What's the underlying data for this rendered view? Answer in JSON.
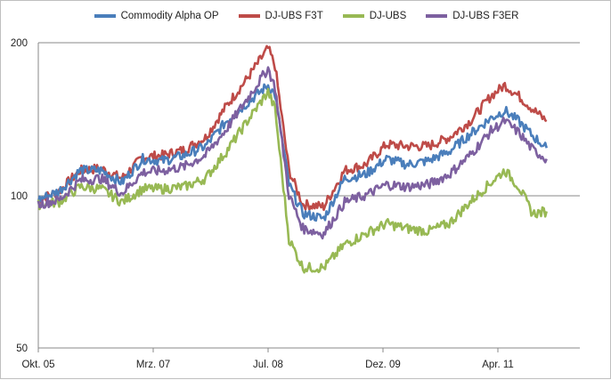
{
  "chart_data": {
    "type": "line",
    "title": "",
    "xlabel": "",
    "ylabel": "",
    "y_scale": "log",
    "ylim": [
      50,
      200
    ],
    "y_ticks": [
      50,
      100,
      200
    ],
    "x_ticks": [
      "Okt. 05",
      "Mrz. 07",
      "Jul. 08",
      "Dez. 09",
      "Apr. 11"
    ],
    "x": [
      "2005-10",
      "2006-01",
      "2006-04",
      "2006-07",
      "2006-10",
      "2007-01",
      "2007-04",
      "2007-07",
      "2007-10",
      "2008-01",
      "2008-04",
      "2008-07",
      "2008-08",
      "2008-10",
      "2008-12",
      "2009-03",
      "2009-06",
      "2009-09",
      "2009-12",
      "2010-03",
      "2010-06",
      "2010-09",
      "2010-12",
      "2011-03",
      "2011-05",
      "2011-07",
      "2011-09",
      "2011-11"
    ],
    "legend_position": "top",
    "grid": "horizontal",
    "series": [
      {
        "name": "Commodity Alpha OP",
        "color": "#4a7ebb",
        "values": [
          98,
          102,
          112,
          112,
          106,
          118,
          117,
          120,
          125,
          140,
          152,
          165,
          158,
          105,
          92,
          90,
          108,
          110,
          118,
          115,
          117,
          122,
          132,
          142,
          147,
          140,
          131,
          124
        ]
      },
      {
        "name": "DJ-UBS F3T",
        "color": "#be4b48",
        "values": [
          98,
          102,
          112,
          113,
          108,
          119,
          120,
          123,
          130,
          150,
          170,
          195,
          180,
          112,
          96,
          95,
          112,
          115,
          126,
          125,
          125,
          130,
          140,
          157,
          165,
          157,
          148,
          140
        ]
      },
      {
        "name": "DJ-UBS",
        "color": "#98b954",
        "values": [
          96,
          97,
          104,
          103,
          97,
          103,
          103,
          104,
          108,
          122,
          140,
          160,
          148,
          82,
          72,
          72,
          80,
          84,
          88,
          86,
          85,
          88,
          97,
          106,
          112,
          104,
          92,
          93
        ]
      },
      {
        "name": "DJ-UBS F3ER",
        "color": "#7d60a0",
        "values": [
          96,
          98,
          107,
          108,
          101,
          111,
          112,
          114,
          120,
          135,
          155,
          178,
          163,
          100,
          86,
          84,
          97,
          100,
          105,
          104,
          105,
          110,
          120,
          134,
          140,
          133,
          123,
          118
        ]
      }
    ]
  }
}
